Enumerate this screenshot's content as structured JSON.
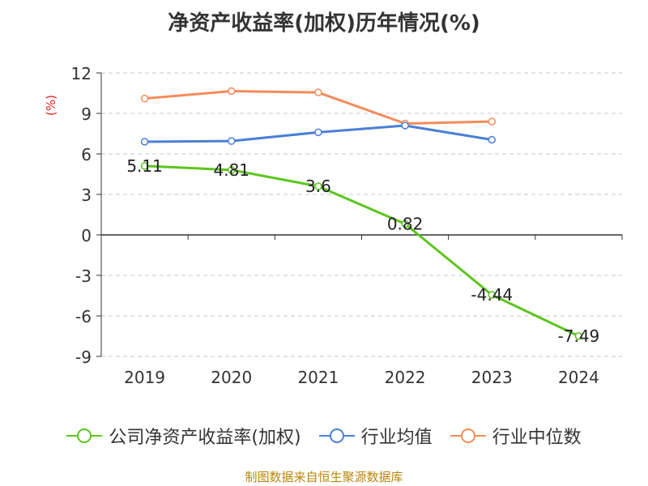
{
  "chart_data": {
    "type": "line",
    "title": "净资产收益率(加权)历年情况(%)",
    "ylabel": "(%)",
    "categories": [
      "2019",
      "2020",
      "2021",
      "2022",
      "2023",
      "2024"
    ],
    "ylim": [
      -9,
      12
    ],
    "yticks": [
      12,
      9,
      6,
      3,
      0,
      -3,
      -6,
      -9
    ],
    "grid": true,
    "legend_position": "bottom",
    "series": [
      {
        "name": "公司净资产收益率(加权)",
        "color": "#5cc51e",
        "values": [
          5.11,
          4.81,
          3.6,
          0.82,
          -4.44,
          -7.49
        ],
        "data_labels": [
          "5.11",
          "4.81",
          "3.6",
          "0.82",
          "-4.44",
          "-7.49"
        ]
      },
      {
        "name": "行业均值",
        "color": "#4a7fd6",
        "values": [
          6.9,
          6.95,
          7.6,
          8.1,
          7.05,
          null
        ]
      },
      {
        "name": "行业中位数",
        "color": "#f48c5a",
        "values": [
          10.1,
          10.65,
          10.55,
          8.25,
          8.4,
          null
        ]
      }
    ]
  },
  "source": "制图数据来自恒生聚源数据库"
}
